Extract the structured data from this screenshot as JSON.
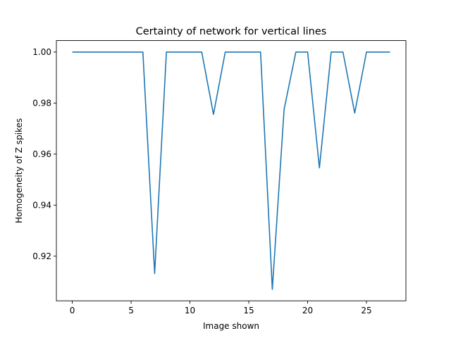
{
  "chart_data": {
    "type": "line",
    "title": "Certainty of network for vertical lines",
    "xlabel": "Image shown",
    "ylabel": "Homogeneity of Z spikes",
    "xlim": [
      -1.35,
      28.35
    ],
    "ylim": [
      0.9025,
      1.0045
    ],
    "xticks": [
      0,
      5,
      10,
      15,
      20,
      25
    ],
    "yticks": [
      0.92,
      0.94,
      0.96,
      0.98,
      1.0
    ],
    "ytick_labels": [
      "0.92",
      "0.94",
      "0.96",
      "0.98",
      "1.00"
    ],
    "grid": false,
    "series": [
      {
        "color": "#1f77b4",
        "x": [
          0,
          1,
          2,
          3,
          4,
          5,
          6,
          7,
          8,
          9,
          10,
          11,
          12,
          13,
          14,
          15,
          16,
          17,
          18,
          19,
          20,
          21,
          22,
          23,
          24,
          25,
          26,
          27
        ],
        "y": [
          1.0,
          1.0,
          1.0,
          1.0,
          1.0,
          1.0,
          1.0,
          0.9132,
          1.0,
          1.0,
          1.0,
          1.0,
          0.9756,
          1.0,
          1.0,
          1.0,
          1.0,
          0.907,
          0.9775,
          1.0,
          1.0,
          0.9546,
          1.0,
          1.0,
          0.9761,
          1.0,
          1.0,
          1.0
        ]
      }
    ]
  }
}
